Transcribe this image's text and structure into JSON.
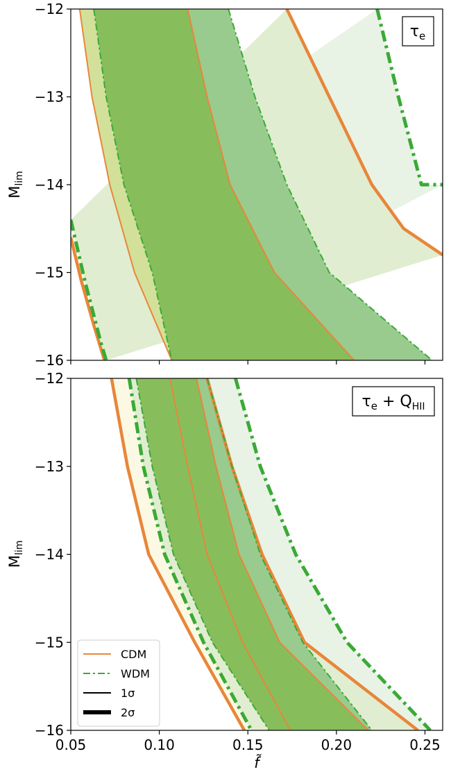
{
  "figure": {
    "xlabel": "f̃",
    "legend": [
      {
        "label": "CDM",
        "style": "solid",
        "color": "#e8863a"
      },
      {
        "label": "WDM",
        "style": "dashdot",
        "color": "#3aaa35"
      },
      {
        "label": "1σ",
        "style": "thin",
        "color": "#000000"
      },
      {
        "label": "2σ",
        "style": "thick",
        "color": "#000000"
      }
    ],
    "colors": {
      "cdm": "#e8863a",
      "wdm": "#3aaa35",
      "cdm_fill": "#fbf9e4",
      "wdm_fill_outer": "#e8f3e6",
      "fill_2sigma_overlap": "#e0edd0",
      "fill_1sigma_overlap": "#88bd5c",
      "wdm_fill_inner": "#99cb8e",
      "cdm_fill_inner": "#d2e09a"
    }
  },
  "chart_data": [
    {
      "type": "area",
      "panel_label": "τ_e",
      "xlabel": "",
      "ylabel": "M_lim",
      "xlim": [
        0.05,
        0.26
      ],
      "ylim": [
        -16,
        -12
      ],
      "xticks": [
        0.05,
        0.1,
        0.15,
        0.2,
        0.25
      ],
      "yticks": [
        -12,
        -13,
        -14,
        -15,
        -16
      ],
      "ytick_labels": [
        "−12",
        "−13",
        "−14",
        "−15",
        "−16"
      ],
      "contours": {
        "CDM_2sigma_low": [
          [
            0.05,
            -14.6
          ],
          [
            0.056,
            -15.1
          ],
          [
            0.063,
            -15.6
          ],
          [
            0.069,
            -16.0
          ]
        ],
        "CDM_1sigma_low": [
          [
            0.055,
            -12.0
          ],
          [
            0.062,
            -13.0
          ],
          [
            0.072,
            -14.0
          ],
          [
            0.086,
            -15.0
          ],
          [
            0.107,
            -16.0
          ]
        ],
        "CDM_1sigma_high": [
          [
            0.116,
            -12.0
          ],
          [
            0.127,
            -13.0
          ],
          [
            0.14,
            -14.0
          ],
          [
            0.165,
            -15.0
          ],
          [
            0.21,
            -16.0
          ]
        ],
        "CDM_2sigma_high": [
          [
            0.172,
            -12.0
          ],
          [
            0.196,
            -13.0
          ],
          [
            0.22,
            -14.0
          ],
          [
            0.238,
            -14.5
          ],
          [
            0.26,
            -14.8
          ]
        ],
        "WDM_2sigma_low": [
          [
            0.05,
            -14.4
          ],
          [
            0.058,
            -15.1
          ],
          [
            0.067,
            -15.8
          ],
          [
            0.07,
            -16.0
          ]
        ],
        "WDM_1sigma_low": [
          [
            0.063,
            -12.0
          ],
          [
            0.07,
            -13.0
          ],
          [
            0.08,
            -14.0
          ],
          [
            0.096,
            -15.0
          ],
          [
            0.107,
            -16.0
          ]
        ],
        "WDM_1sigma_high": [
          [
            0.139,
            -12.0
          ],
          [
            0.154,
            -13.0
          ],
          [
            0.172,
            -14.0
          ],
          [
            0.196,
            -15.0
          ],
          [
            0.254,
            -16.0
          ]
        ],
        "WDM_2sigma_high": [
          [
            0.223,
            -12.0
          ],
          [
            0.235,
            -13.0
          ],
          [
            0.248,
            -14.0
          ],
          [
            0.26,
            -14.0
          ]
        ]
      }
    },
    {
      "type": "area",
      "panel_label": "τ_e + Q_HII",
      "xlabel": "f̃",
      "ylabel": "M_lim",
      "xlim": [
        0.05,
        0.26
      ],
      "ylim": [
        -16,
        -12
      ],
      "xticks": [
        0.05,
        0.1,
        0.15,
        0.2,
        0.25
      ],
      "xtick_labels": [
        "0.05",
        "0.10",
        "0.15",
        "0.20",
        "0.25"
      ],
      "yticks": [
        -12,
        -13,
        -14,
        -15,
        -16
      ],
      "ytick_labels": [
        "−12",
        "−13",
        "−14",
        "−15",
        "−16"
      ],
      "contours": {
        "CDM_2sigma_low": [
          [
            0.073,
            -12.0
          ],
          [
            0.082,
            -13.0
          ],
          [
            0.094,
            -14.0
          ],
          [
            0.12,
            -15.0
          ],
          [
            0.148,
            -16.0
          ]
        ],
        "CDM_1sigma_low": [
          [
            0.106,
            -12.0
          ],
          [
            0.116,
            -13.0
          ],
          [
            0.127,
            -14.0
          ],
          [
            0.147,
            -15.0
          ],
          [
            0.174,
            -16.0
          ]
        ],
        "CDM_1sigma_high": [
          [
            0.121,
            -12.0
          ],
          [
            0.132,
            -13.0
          ],
          [
            0.145,
            -14.0
          ],
          [
            0.168,
            -15.0
          ],
          [
            0.218,
            -16.0
          ]
        ],
        "CDM_2sigma_high": [
          [
            0.127,
            -12.0
          ],
          [
            0.141,
            -13.0
          ],
          [
            0.158,
            -14.0
          ],
          [
            0.182,
            -15.0
          ],
          [
            0.246,
            -16.0
          ]
        ],
        "WDM_2sigma_low": [
          [
            0.083,
            -12.0
          ],
          [
            0.091,
            -13.0
          ],
          [
            0.103,
            -14.0
          ],
          [
            0.125,
            -15.0
          ],
          [
            0.152,
            -16.0
          ]
        ],
        "WDM_1sigma_low": [
          [
            0.087,
            -12.0
          ],
          [
            0.096,
            -13.0
          ],
          [
            0.108,
            -14.0
          ],
          [
            0.13,
            -15.0
          ],
          [
            0.162,
            -16.0
          ]
        ],
        "WDM_1sigma_high": [
          [
            0.127,
            -12.0
          ],
          [
            0.141,
            -13.0
          ],
          [
            0.157,
            -14.0
          ],
          [
            0.181,
            -15.0
          ],
          [
            0.22,
            -16.0
          ]
        ],
        "WDM_2sigma_high": [
          [
            0.143,
            -12.0
          ],
          [
            0.157,
            -13.0
          ],
          [
            0.177,
            -14.0
          ],
          [
            0.206,
            -15.0
          ],
          [
            0.253,
            -16.0
          ]
        ]
      }
    }
  ]
}
